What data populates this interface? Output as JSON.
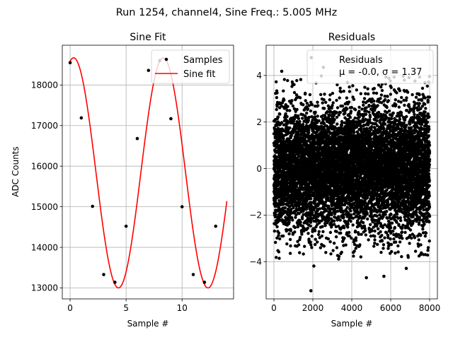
{
  "suptitle": "Run 1254, channel4, Sine Freq.: 5.005 MHz",
  "chart_data": [
    {
      "type": "scatter+line",
      "title": "Sine Fit",
      "xlabel": "Sample #",
      "ylabel": "ADC Counts",
      "xlim": [
        -0.7,
        14.6
      ],
      "ylim": [
        12730,
        18980
      ],
      "xticks": [
        0,
        5,
        10
      ],
      "yticks": [
        13000,
        14000,
        15000,
        16000,
        17000,
        18000
      ],
      "grid": true,
      "legend_position": "top-right",
      "series": [
        {
          "name": "Samples",
          "kind": "points",
          "color": "#000000",
          "x": [
            0,
            1,
            2,
            3,
            4,
            5,
            6,
            7,
            8,
            9,
            10,
            11,
            12,
            13
          ],
          "y": [
            18550,
            17190,
            15010,
            13330,
            13140,
            14520,
            16680,
            18360,
            18600,
            17170,
            15000,
            13330,
            13140,
            14520
          ]
        },
        {
          "name": "Sine fit",
          "kind": "line",
          "color": "#ff0000",
          "model": {
            "offset": 15835,
            "amplitude": 2835,
            "period": 8.0,
            "phase": 1.323,
            "x_start": 0,
            "x_end": 14
          }
        }
      ]
    },
    {
      "type": "scatter",
      "title": "Residuals",
      "xlabel": "Sample #",
      "xlim": [
        -400,
        8400
      ],
      "ylim": [
        -5.6,
        5.3
      ],
      "xticks": [
        0,
        2000,
        4000,
        6000,
        8000
      ],
      "yticks": [
        -4,
        -2,
        0,
        2,
        4
      ],
      "grid": true,
      "legend_position": "top-right",
      "series": [
        {
          "name": "Residuals",
          "color": "#000000",
          "n_points": 8000,
          "stats": {
            "mean": -0.0,
            "std": 1.37
          },
          "outliers": [
            {
              "x": 1900,
              "y": -5.25
            },
            {
              "x": 1920,
              "y": 4.77
            },
            {
              "x": 2540,
              "y": 4.35
            },
            {
              "x": 400,
              "y": 4.18
            },
            {
              "x": 2050,
              "y": -4.19
            },
            {
              "x": 4750,
              "y": -4.69
            },
            {
              "x": 5650,
              "y": -4.63
            },
            {
              "x": 6800,
              "y": -4.29
            },
            {
              "x": 7950,
              "y": 3.72
            }
          ]
        }
      ],
      "legend_label": "Residuals",
      "legend_stats": "μ = -0.0, σ = 1.37"
    }
  ]
}
